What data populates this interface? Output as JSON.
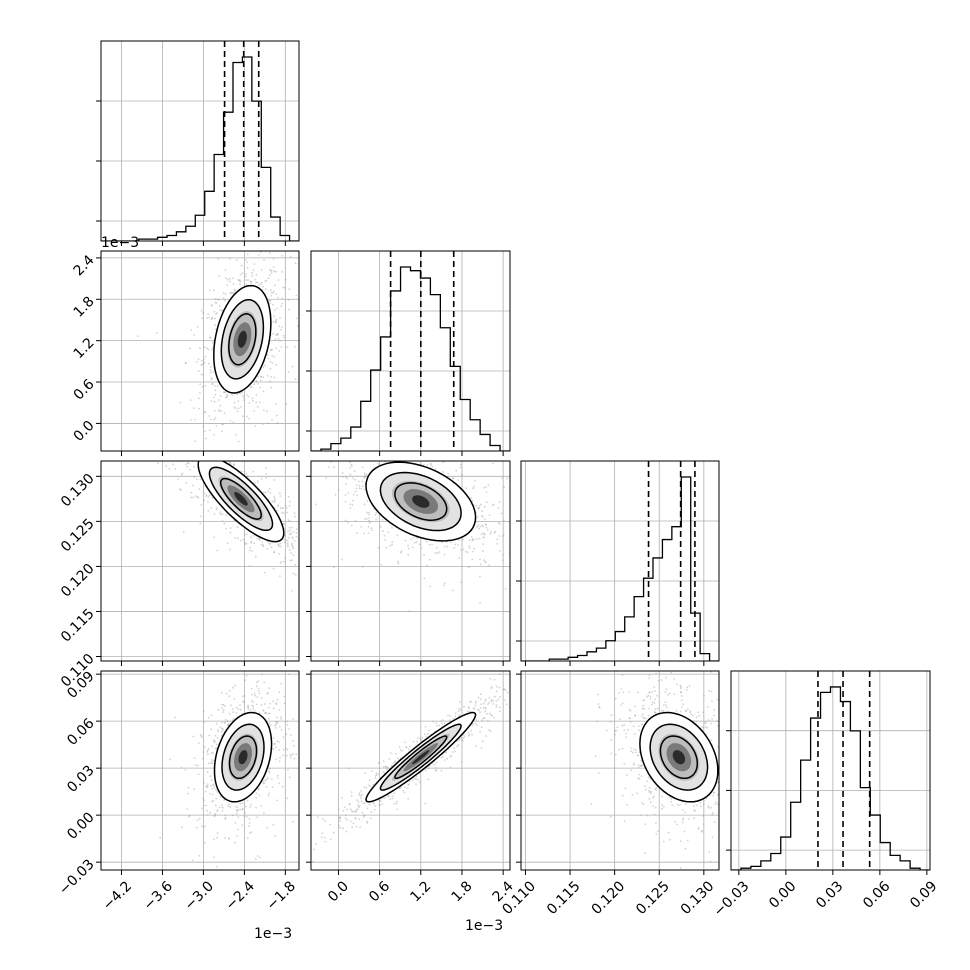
{
  "chart_data": {
    "type": "corner",
    "params": [
      {
        "ticks": [
          -4.2,
          -3.6,
          -3.0,
          -2.4,
          -1.8
        ],
        "tick_labels": [
          "−4.2",
          "−3.6",
          "−3.0",
          "−2.4",
          "−1.8"
        ],
        "range": [
          -4.5,
          -1.6
        ],
        "offset_label": "1e−3"
      },
      {
        "ticks": [
          0.0,
          0.6,
          1.2,
          1.8,
          2.4
        ],
        "tick_labels": [
          "0.0",
          "0.6",
          "1.2",
          "1.8",
          "2.4"
        ],
        "range": [
          -0.4,
          2.5
        ],
        "offset_label": "1e−3"
      },
      {
        "ticks": [
          0.11,
          0.115,
          0.12,
          0.125,
          0.13
        ],
        "tick_labels": [
          "0.110",
          "0.115",
          "0.120",
          "0.125",
          "0.130"
        ],
        "range": [
          0.1095,
          0.1317
        ],
        "offset_label": ""
      },
      {
        "ticks": [
          -0.03,
          0.0,
          0.03,
          0.06,
          0.09
        ],
        "tick_labels": [
          "−0.03",
          "0.00",
          "0.03",
          "0.06",
          "0.09"
        ],
        "range": [
          -0.035,
          0.092
        ],
        "offset_label": ""
      }
    ],
    "histograms": [
      {
        "edges_range": [
          -4.5,
          -1.6
        ],
        "counts": [
          0,
          0,
          0,
          0,
          1,
          1,
          2,
          3,
          5,
          8,
          14,
          27,
          47,
          70,
          97,
          100,
          76,
          40,
          13,
          3,
          0
        ],
        "quantiles": [
          -2.69,
          -2.41,
          -2.19
        ]
      },
      {
        "edges_range": [
          -0.4,
          2.5
        ],
        "counts": [
          0,
          1,
          4,
          7,
          13,
          27,
          44,
          62,
          87,
          100,
          98,
          94,
          85,
          67,
          46,
          28,
          17,
          9,
          3,
          0
        ],
        "quantiles": [
          0.76,
          1.2,
          1.68
        ]
      },
      {
        "edges_range": [
          0.1095,
          0.1317
        ],
        "counts": [
          0,
          0,
          0,
          1,
          1,
          2,
          3,
          5,
          7,
          11,
          16,
          24,
          35,
          45,
          56,
          66,
          73,
          100,
          26,
          4,
          0
        ],
        "quantiles": [
          0.1238,
          0.1274,
          0.129
        ]
      },
      {
        "edges_range": [
          -0.035,
          0.092
        ],
        "counts": [
          0,
          1,
          2,
          5,
          9,
          18,
          37,
          60,
          83,
          97,
          100,
          92,
          76,
          45,
          30,
          15,
          8,
          5,
          1,
          0
        ],
        "quantiles": [
          0.0205,
          0.0365,
          0.0535
        ]
      }
    ],
    "pairs": [
      {
        "row": 1,
        "col": 0,
        "center": [
          -2.43,
          1.22
        ],
        "sd": [
          0.22,
          0.41
        ],
        "rho": 0.3
      },
      {
        "row": 2,
        "col": 0,
        "center": [
          -2.45,
          0.1275
        ],
        "sd": [
          0.33,
          0.0025
        ],
        "rho": -0.8
      },
      {
        "row": 2,
        "col": 1,
        "center": [
          1.2,
          0.1272
        ],
        "sd": [
          0.42,
          0.0023
        ],
        "rho": -0.4
      },
      {
        "row": 3,
        "col": 0,
        "center": [
          -2.42,
          0.037
        ],
        "sd": [
          0.22,
          0.015
        ],
        "rho": 0.3
      },
      {
        "row": 3,
        "col": 1,
        "center": [
          1.2,
          0.037
        ],
        "sd": [
          0.42,
          0.015
        ],
        "rho": 0.95
      },
      {
        "row": 3,
        "col": 2,
        "center": [
          0.1272,
          0.037
        ],
        "sd": [
          0.0023,
          0.015
        ],
        "rho": -0.3
      }
    ],
    "grid": true,
    "line_color": "#000000",
    "scatter_color": "#9e9e9e"
  }
}
